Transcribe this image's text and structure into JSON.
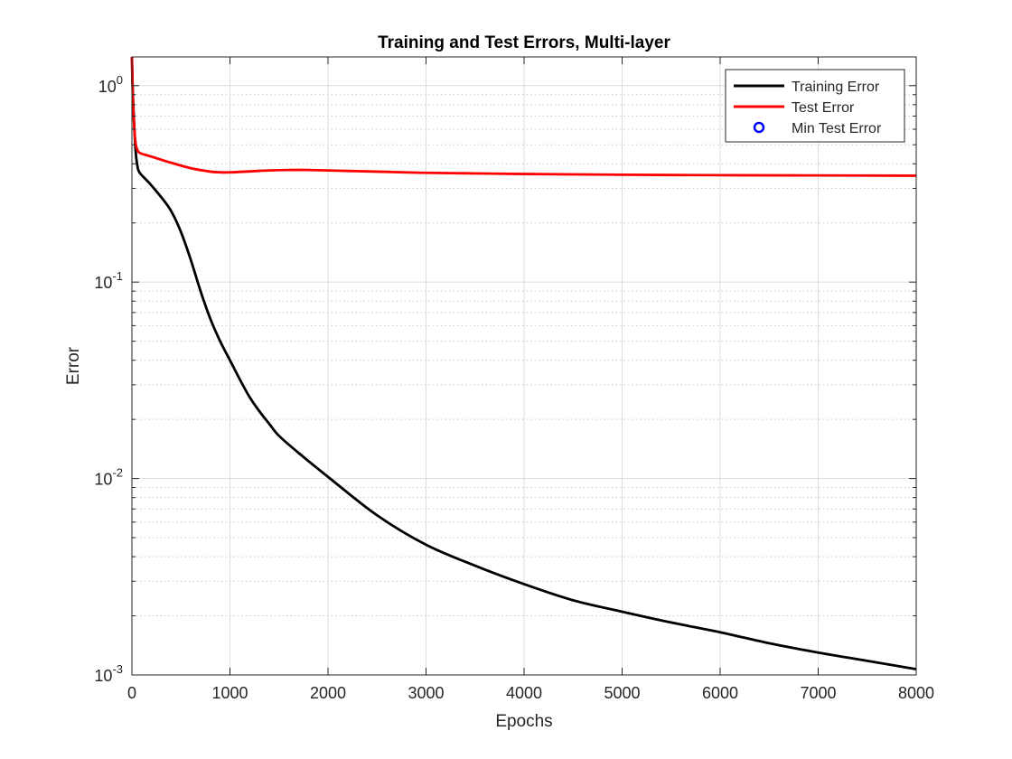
{
  "chart_data": {
    "type": "line",
    "title": "Training and Test Errors, Multi-layer",
    "xlabel": "Epochs",
    "ylabel": "Error",
    "xlim": [
      0,
      8000
    ],
    "ylim": [
      0.001,
      1.4
    ],
    "yscale": "log",
    "grid": "on",
    "legend_position": "top-right",
    "x_ticks": [
      0,
      1000,
      2000,
      3000,
      4000,
      5000,
      6000,
      7000,
      8000
    ],
    "x_tick_labels": [
      "0",
      "1000",
      "2000",
      "3000",
      "4000",
      "5000",
      "6000",
      "7000",
      "8000"
    ],
    "y_ticks": [
      {
        "value": 1,
        "base": "10",
        "exp": "0"
      },
      {
        "value": 0.1,
        "base": "10",
        "exp": "-1"
      },
      {
        "value": 0.01,
        "base": "10",
        "exp": "-2"
      },
      {
        "value": 0.001,
        "base": "10",
        "exp": "-3"
      }
    ],
    "series": [
      {
        "name": "Training Error",
        "color": "#000000",
        "x": [
          0,
          10,
          25,
          40,
          60,
          80,
          100,
          150,
          200,
          300,
          400,
          500,
          600,
          700,
          800,
          900,
          1000,
          1100,
          1200,
          1300,
          1400,
          1500,
          1700,
          2000,
          2500,
          3000,
          3500,
          4000,
          4500,
          5000,
          5500,
          6000,
          6500,
          7000,
          7500,
          8000
        ],
        "y": [
          1.4,
          0.9,
          0.6,
          0.45,
          0.38,
          0.36,
          0.35,
          0.33,
          0.31,
          0.27,
          0.23,
          0.18,
          0.13,
          0.09,
          0.065,
          0.05,
          0.04,
          0.032,
          0.026,
          0.022,
          0.019,
          0.0165,
          0.0135,
          0.0102,
          0.0065,
          0.0046,
          0.0036,
          0.0029,
          0.0024,
          0.0021,
          0.00185,
          0.00165,
          0.00145,
          0.0013,
          0.00118,
          0.00107
        ]
      },
      {
        "name": "Test Error",
        "color": "#ff0000",
        "x": [
          0,
          10,
          25,
          40,
          60,
          80,
          100,
          200,
          400,
          600,
          800,
          900,
          1000,
          1200,
          1400,
          1600,
          1800,
          2000,
          2500,
          3000,
          4000,
          5000,
          6000,
          7000,
          8000
        ],
        "y": [
          1.4,
          0.85,
          0.6,
          0.5,
          0.465,
          0.455,
          0.45,
          0.435,
          0.405,
          0.38,
          0.365,
          0.362,
          0.362,
          0.366,
          0.37,
          0.372,
          0.372,
          0.37,
          0.365,
          0.36,
          0.355,
          0.352,
          0.35,
          0.349,
          0.348
        ]
      },
      {
        "name": "Min Test Error",
        "color": "#0000ff",
        "marker": "circle",
        "x": [],
        "y": []
      }
    ]
  }
}
